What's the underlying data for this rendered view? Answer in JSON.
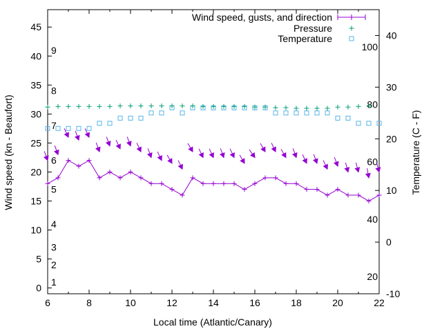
{
  "chart_data": {
    "type": "line",
    "xlabel": "Local time (Atlantic/Canary)",
    "ylabel": "Wind speed (kn - Beaufort)",
    "y2label": "Temperature (C - F)",
    "xlim": [
      6,
      22
    ],
    "ylim": [
      -1,
      48
    ],
    "y2lim": [
      -10,
      45
    ],
    "x_ticks": [
      "6",
      "8",
      "10",
      "12",
      "14",
      "16",
      "18",
      "20",
      "22"
    ],
    "y_ticks": [
      "0",
      "5",
      "10",
      "15",
      "20",
      "25",
      "30",
      "35",
      "40",
      "45"
    ],
    "y2_ticks": [
      "-10",
      "0",
      "10",
      "20",
      "30",
      "40"
    ],
    "fahrenheit_labels": [
      "20",
      "40",
      "60",
      "80",
      "100"
    ],
    "beaufort_labels": [
      "1",
      "2",
      "3",
      "4",
      "5",
      "6",
      "7",
      "8",
      "9"
    ],
    "legend": {
      "position": "top-right",
      "entries": [
        "Wind speed, gusts, and direction",
        "Pressure",
        "Temperature"
      ]
    },
    "colors": {
      "wind": "#9400d3",
      "pressure": "#009e73",
      "temperature": "#56b4e9"
    },
    "x": [
      6,
      6.5,
      7,
      7.5,
      8,
      8.5,
      9,
      9.5,
      10,
      10.5,
      11,
      11.5,
      12,
      12.5,
      13,
      13.5,
      14,
      14.5,
      15,
      15.5,
      16,
      16.5,
      17,
      17.5,
      18,
      18.5,
      19,
      19.5,
      20,
      20.5,
      21,
      21.5,
      22
    ],
    "series": [
      {
        "name": "Wind speed",
        "values": [
          18,
          19,
          22,
          21,
          22,
          19,
          20,
          19,
          20,
          19,
          18,
          18,
          17,
          16,
          19,
          18,
          18,
          18,
          18,
          17,
          18,
          19,
          19,
          18,
          18,
          17,
          17,
          16,
          17,
          16,
          16,
          15,
          16
        ]
      },
      {
        "name": "Gusts",
        "values": [
          22,
          23,
          26,
          25.5,
          26,
          23.5,
          24.5,
          24,
          24.5,
          23.5,
          22.5,
          22,
          21.5,
          20.5,
          23.5,
          22.5,
          22.5,
          22.5,
          22.5,
          21.5,
          22.5,
          23.5,
          23.5,
          22.5,
          22.5,
          21.5,
          21.5,
          20.5,
          21,
          20,
          20,
          19,
          20
        ]
      },
      {
        "name": "Direction (deg)",
        "values": [
          20,
          20,
          25,
          20,
          25,
          20,
          20,
          25,
          20,
          25,
          20,
          25,
          30,
          25,
          30,
          25,
          25,
          20,
          25,
          30,
          35,
          30,
          25,
          30,
          20,
          25,
          20,
          25,
          20,
          15,
          15,
          10,
          15
        ]
      },
      {
        "name": "Pressure",
        "x": [
          6,
          6.5,
          7,
          7.5,
          8,
          8.5,
          9,
          9.5,
          10,
          10.5,
          11,
          11.5,
          12,
          12.5,
          13,
          13.5,
          14,
          14.5,
          15,
          15.5,
          16,
          16.5,
          17,
          17.5,
          18,
          18.5,
          19,
          19.5,
          20,
          20.5,
          21,
          21.5
        ],
        "values": [
          31.2,
          31.3,
          31.3,
          31.3,
          31.3,
          31.3,
          31.3,
          31.4,
          31.4,
          31.4,
          31.4,
          31.4,
          31.4,
          31.4,
          31.4,
          31.3,
          31.3,
          31.3,
          31.3,
          31.3,
          31.2,
          31.2,
          31.1,
          31.1,
          31.0,
          31.0,
          31.0,
          31.0,
          31.2,
          31.2,
          31.3,
          31.4
        ]
      },
      {
        "name": "Temperature",
        "x": [
          6,
          6.5,
          7,
          7.5,
          8,
          8.5,
          9,
          9.5,
          10,
          10.5,
          11,
          11.5,
          12,
          12.5,
          13,
          13.5,
          14,
          14.5,
          15,
          15.5,
          16,
          16.5,
          17,
          17.5,
          18,
          18.5,
          19,
          19.5,
          20,
          20.5,
          21,
          21.5,
          22
        ],
        "values": [
          22,
          22,
          22,
          22,
          22,
          23,
          23,
          24,
          24,
          24,
          25,
          25,
          26,
          25,
          26,
          26,
          26,
          26,
          26,
          26,
          26,
          26,
          25,
          25,
          25,
          25,
          25,
          25,
          24,
          24,
          23,
          23,
          23
        ]
      }
    ]
  }
}
